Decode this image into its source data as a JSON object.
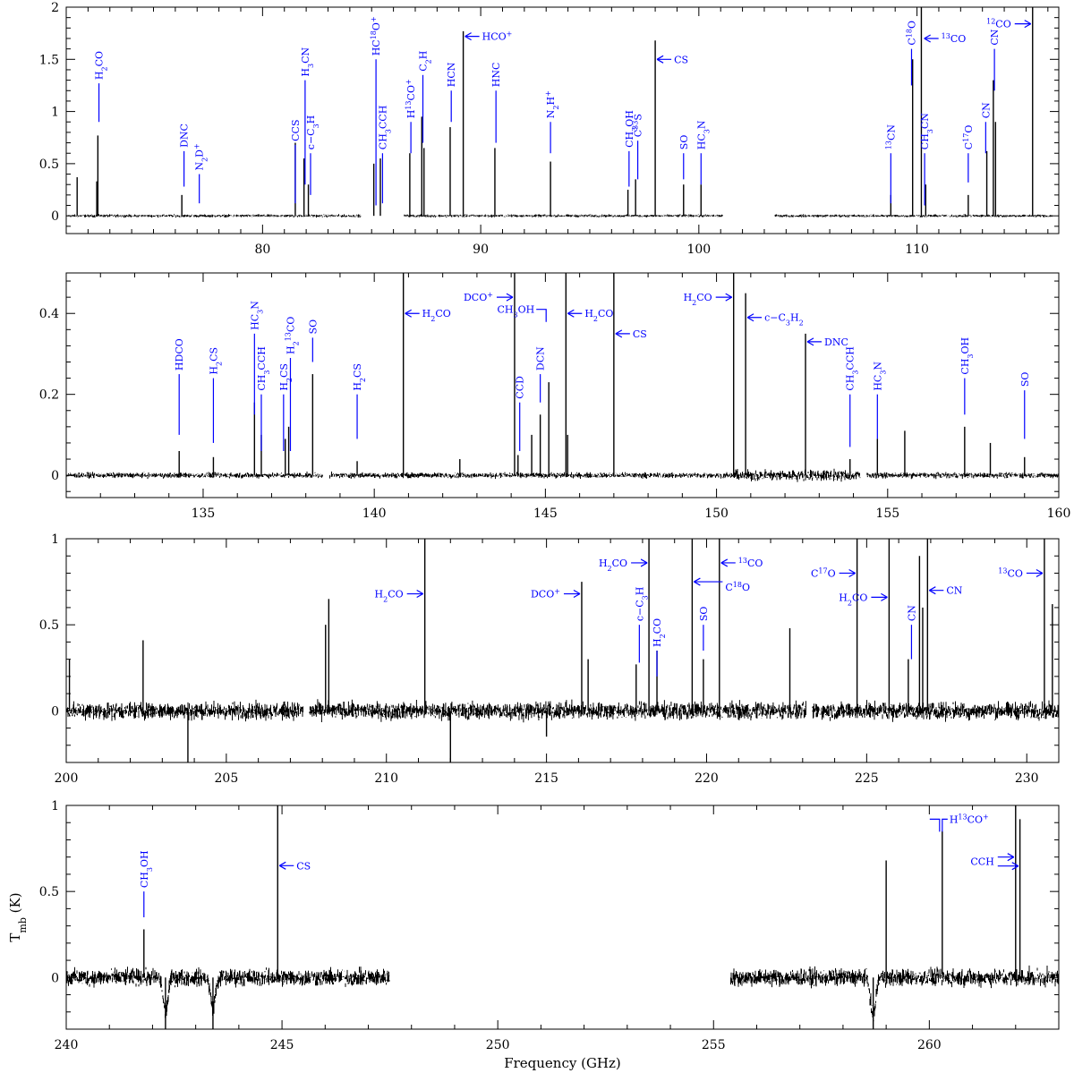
{
  "chart_data": [
    {
      "type": "line",
      "xlim": [
        71,
        116.5
      ],
      "ylim": [
        -0.17,
        2
      ],
      "xticks": [
        80,
        90,
        100,
        110
      ],
      "yticks": [
        0,
        0.5,
        1,
        1.5,
        2
      ],
      "segments": [
        [
          71,
          84.5
        ],
        [
          86.5,
          101.1
        ],
        [
          103.5,
          116.2
        ]
      ],
      "noise": [
        0.012,
        0.012,
        0.012
      ],
      "spikes": [
        [
          71.5,
          0.37
        ],
        [
          72.4,
          0.33
        ],
        [
          72.45,
          0.77
        ],
        [
          76.3,
          0.2
        ],
        [
          81.5,
          0.7
        ],
        [
          81.9,
          0.55
        ],
        [
          82.1,
          0.3
        ],
        [
          85.1,
          0.5
        ],
        [
          85.4,
          0.55
        ],
        [
          86.75,
          0.6
        ],
        [
          87.3,
          0.95
        ],
        [
          87.4,
          0.65
        ],
        [
          88.6,
          0.85
        ],
        [
          89.2,
          1.77
        ],
        [
          90.65,
          0.65
        ],
        [
          93.2,
          0.52
        ],
        [
          96.75,
          0.25
        ],
        [
          97.1,
          0.35
        ],
        [
          98,
          1.68
        ],
        [
          99.3,
          0.3
        ],
        [
          100.1,
          0.3
        ],
        [
          108.8,
          0.2
        ],
        [
          109.8,
          1.5
        ],
        [
          110.2,
          2.02
        ],
        [
          110.4,
          0.3
        ],
        [
          112.35,
          0.2
        ],
        [
          113.2,
          0.62
        ],
        [
          113.5,
          1.3
        ],
        [
          113.6,
          0.9
        ],
        [
          115.3,
          2.02
        ]
      ],
      "labels": [
        {
          "text": "H2CO",
          "x": 72.5,
          "ty": 1.35,
          "y1": 1.27,
          "y2": 0.9
        },
        {
          "text": "DNC",
          "x": 76.4,
          "ty": 0.9,
          "y1": 0.62,
          "y2": 0.28
        },
        {
          "text": "N2D+",
          "x": 77.1,
          "ty": 0.7,
          "y1": 0.4,
          "y2": 0.12
        },
        {
          "text": "CCS",
          "x": 81.5,
          "ty": 0.88,
          "y1": 0.68,
          "y2": 0.12
        },
        {
          "text": "H3CN",
          "x": 81.95,
          "ty": 1.5,
          "y1": 1.3,
          "y2": 0.3
        },
        {
          "text": "c−C3H",
          "x": 82.2,
          "ty": 0.9,
          "y1": 0.6,
          "y2": 0.2
        },
        {
          "text": "HC18O+",
          "x": 85.2,
          "ty": 1.88,
          "y1": 1.5,
          "y2": 0.1
        },
        {
          "text": "CH3CCH",
          "x": 85.5,
          "ty": 0.88,
          "y1": 0.6,
          "y2": 0.12
        },
        {
          "text": "H13CO+",
          "x": 86.8,
          "ty": 1.15,
          "y1": 0.9,
          "y2": 0.6
        },
        {
          "text": "C2H",
          "x": 87.35,
          "ty": 1.6,
          "y1": 1.35,
          "y2": 0.7
        },
        {
          "text": "HCN",
          "x": 88.65,
          "ty": 1.2,
          "y1": 1.2,
          "y2": 0.9
        },
        {
          "text": "HNC",
          "x": 90.7,
          "ty": 1.2,
          "y1": 1.2,
          "y2": 0.7
        },
        {
          "text": "N2H+",
          "x": 93.2,
          "ty": 1.15,
          "y1": 0.9,
          "y2": 0.6
        },
        {
          "text": "CH3OH",
          "x": 96.8,
          "ty": 0.9,
          "y1": 0.62,
          "y2": 0.28
        },
        {
          "text": "C33S",
          "x": 97.2,
          "ty": 1.0,
          "y1": 0.72,
          "y2": 0.35
        },
        {
          "text": "SO",
          "x": 99.3,
          "ty": 0.72,
          "y1": 0.6,
          "y2": 0.35
        },
        {
          "text": "HC3N",
          "x": 100.1,
          "ty": 0.85,
          "y1": 0.6,
          "y2": 0.3
        },
        {
          "text": "13CN",
          "x": 108.8,
          "ty": 0.82,
          "y1": 0.6,
          "y2": 0.12
        },
        {
          "text": "C18O",
          "x": 109.75,
          "ty": 1.83,
          "y1": 1.6,
          "y2": 1.25
        },
        {
          "text": "CH3CN",
          "x": 110.35,
          "ty": 0.85,
          "y1": 0.6,
          "y2": 0.1
        },
        {
          "text": "C17O",
          "x": 112.35,
          "ty": 0.82,
          "y1": 0.6,
          "y2": 0.32
        },
        {
          "text": "CN",
          "x": 113.15,
          "ty": 1.0,
          "y1": 0.9,
          "y2": 0.6
        },
        {
          "text": "CN",
          "x": 113.55,
          "ty": 1.62,
          "y1": 1.6,
          "y2": 1.2
        }
      ],
      "arrows": [
        {
          "text": "HCO+",
          "x": 89.2,
          "y": 1.72,
          "dir": "right"
        },
        {
          "text": "CS",
          "x": 98,
          "y": 1.5,
          "dir": "right"
        },
        {
          "text": "13CO",
          "x": 110.25,
          "y": 1.7,
          "dir": "right"
        },
        {
          "text": "12CO",
          "x": 115.3,
          "y": 1.84,
          "dir": "left"
        }
      ]
    },
    {
      "type": "line",
      "xlim": [
        131,
        160
      ],
      "ylim": [
        -0.055,
        0.5
      ],
      "xticks": [
        135,
        140,
        145,
        150,
        155,
        160
      ],
      "yticks": [
        0,
        0.2,
        0.4
      ],
      "segments": [
        [
          131,
          138.5
        ],
        [
          138.7,
          154.2
        ],
        [
          154.4,
          160
        ]
      ],
      "noise": [
        0.006,
        0.006,
        0.006
      ],
      "noisy_band": [
        [
          150.5,
          154.2,
          0.012
        ]
      ],
      "spikes": [
        [
          134.3,
          0.06
        ],
        [
          135.3,
          0.045
        ],
        [
          136.5,
          0.18
        ],
        [
          136.7,
          0.1
        ],
        [
          137.4,
          0.09
        ],
        [
          137.5,
          0.12
        ],
        [
          138.2,
          0.25
        ],
        [
          139.5,
          0.035
        ],
        [
          140.85,
          0.52
        ],
        [
          142.5,
          0.04
        ],
        [
          144.1,
          0.52
        ],
        [
          144.2,
          0.05
        ],
        [
          144.6,
          0.1
        ],
        [
          144.85,
          0.15
        ],
        [
          145.1,
          0.23
        ],
        [
          145.6,
          0.52
        ],
        [
          145.65,
          0.1
        ],
        [
          147,
          0.52
        ],
        [
          150.5,
          0.52
        ],
        [
          150.85,
          0.45
        ],
        [
          152.6,
          0.35
        ],
        [
          153.9,
          0.04
        ],
        [
          154.7,
          0.09
        ],
        [
          155.5,
          0.11
        ],
        [
          157.25,
          0.12
        ],
        [
          158,
          0.08
        ],
        [
          159,
          0.045
        ]
      ],
      "labels": [
        {
          "text": "HDCO",
          "x": 134.3,
          "ty": 0.33,
          "y1": 0.25,
          "y2": 0.1
        },
        {
          "text": "H2CS",
          "x": 135.3,
          "ty": 0.28,
          "y1": 0.24,
          "y2": 0.08
        },
        {
          "text": "HC3N",
          "x": 136.5,
          "ty": 0.4,
          "y1": 0.35,
          "y2": 0.15
        },
        {
          "text": "CH3CCH",
          "x": 136.7,
          "ty": 0.32,
          "y1": 0.2,
          "y2": 0.06
        },
        {
          "text": "H2CS",
          "x": 137.35,
          "ty": 0.2,
          "y1": 0.2,
          "y2": 0.06
        },
        {
          "text": "H213CO",
          "x": 137.55,
          "ty": 0.33,
          "y1": 0.29,
          "y2": 0.06
        },
        {
          "text": "SO",
          "x": 138.2,
          "ty": 0.37,
          "y1": 0.34,
          "y2": 0.28
        },
        {
          "text": "H2CS",
          "x": 139.5,
          "ty": 0.26,
          "y1": 0.2,
          "y2": 0.09
        },
        {
          "text": "CCD",
          "x": 144.25,
          "ty": 0.19,
          "y1": 0.18,
          "y2": 0.06
        },
        {
          "text": "DCN",
          "x": 144.85,
          "ty": 0.27,
          "y1": 0.25,
          "y2": 0.18
        },
        {
          "text": "HC3N",
          "x": 154.7,
          "ty": 0.25,
          "y1": 0.2,
          "y2": 0.09
        },
        {
          "text": "CH3CCH",
          "x": 153.9,
          "ty": 0.2,
          "y1": 0.2,
          "y2": 0.07
        },
        {
          "text": "CH3OH",
          "x": 157.25,
          "ty": 0.27,
          "y1": 0.24,
          "y2": 0.15
        },
        {
          "text": "SO",
          "x": 159,
          "ty": 0.25,
          "y1": 0.21,
          "y2": 0.09
        }
      ],
      "arrows": [
        {
          "text": "H2CO",
          "x": 140.85,
          "y": 0.4,
          "dir": "right"
        },
        {
          "text": "DCO+",
          "x": 144.1,
          "y": 0.44,
          "dir": "left"
        },
        {
          "text": "CH3OH",
          "x": 145.1,
          "y": 0.41,
          "dir": "bracket"
        },
        {
          "text": "H2CO",
          "x": 145.6,
          "y": 0.4,
          "dir": "right"
        },
        {
          "text": "CS",
          "x": 147,
          "y": 0.35,
          "dir": "right"
        },
        {
          "text": "H2CO",
          "x": 150.5,
          "y": 0.44,
          "dir": "left"
        },
        {
          "text": "c−C3H2",
          "x": 150.85,
          "y": 0.39,
          "dir": "right"
        },
        {
          "text": "DNC",
          "x": 152.6,
          "y": 0.33,
          "dir": "right"
        }
      ]
    },
    {
      "type": "line",
      "xlim": [
        200,
        231
      ],
      "ylim": [
        -0.3,
        1
      ],
      "xticks": [
        200,
        205,
        210,
        215,
        220,
        225,
        230
      ],
      "yticks": [
        0,
        0.5,
        1
      ],
      "segments": [
        [
          200,
          207.4
        ],
        [
          207.6,
          223.1
        ],
        [
          223.3,
          231
        ]
      ],
      "noise": [
        0.045,
        0.045,
        0.045
      ],
      "spikes": [
        [
          200.1,
          0.3
        ],
        [
          202.4,
          0.41
        ],
        [
          203.8,
          -0.3
        ],
        [
          208.1,
          0.5
        ],
        [
          208.2,
          0.65
        ],
        [
          211.2,
          1.05
        ],
        [
          212,
          -0.35
        ],
        [
          215,
          -0.15
        ],
        [
          216.1,
          0.75
        ],
        [
          216.3,
          0.3
        ],
        [
          217.8,
          0.27
        ],
        [
          218.2,
          1.05
        ],
        [
          218.45,
          0.35
        ],
        [
          219.55,
          1.05
        ],
        [
          219.9,
          0.3
        ],
        [
          220.4,
          1.05
        ],
        [
          222.6,
          0.48
        ],
        [
          224.7,
          1.05
        ],
        [
          225.7,
          1.05
        ],
        [
          226.3,
          0.3
        ],
        [
          226.65,
          0.9
        ],
        [
          226.75,
          0.6
        ],
        [
          226.9,
          1.05
        ],
        [
          230.55,
          1.05
        ],
        [
          230.8,
          0.62
        ]
      ],
      "labels": [
        {
          "text": "c−C3H",
          "x": 217.9,
          "ty": 0.7,
          "y1": 0.5,
          "y2": 0.28
        },
        {
          "text": "H2CO",
          "x": 218.45,
          "ty": 0.58,
          "y1": 0.35,
          "y2": 0.2
        },
        {
          "text": "SO",
          "x": 219.9,
          "ty": 0.5,
          "y1": 0.5,
          "y2": 0.35
        },
        {
          "text": "CN",
          "x": 226.4,
          "ty": 0.5,
          "y1": 0.5,
          "y2": 0.3
        }
      ],
      "arrows": [
        {
          "text": "H2CO",
          "x": 211.2,
          "y": 0.68,
          "dir": "left"
        },
        {
          "text": "DCO+",
          "x": 216.1,
          "y": 0.68,
          "dir": "left"
        },
        {
          "text": "H2CO",
          "x": 218.2,
          "y": 0.86,
          "dir": "left"
        },
        {
          "text": "C18O",
          "x": 219.55,
          "y": 0.75,
          "dir": "right-long"
        },
        {
          "text": "13CO",
          "x": 220.4,
          "y": 0.86,
          "dir": "right"
        },
        {
          "text": "C17O",
          "x": 224.7,
          "y": 0.8,
          "dir": "left"
        },
        {
          "text": "H2CO",
          "x": 225.7,
          "y": 0.66,
          "dir": "left"
        },
        {
          "text": "CN",
          "x": 226.9,
          "y": 0.7,
          "dir": "right"
        },
        {
          "text": "13CO",
          "x": 230.55,
          "y": 0.8,
          "dir": "left"
        }
      ]
    },
    {
      "type": "line",
      "xlim": [
        240,
        263
      ],
      "ylim": [
        -0.3,
        1
      ],
      "xticks": [
        240,
        245,
        250,
        255,
        260
      ],
      "yticks": [
        0,
        0.5,
        1
      ],
      "segments": [
        [
          240,
          247.5
        ],
        [
          255.4,
          263
        ]
      ],
      "noise": [
        0.045,
        0.045
      ],
      "dips": [
        [
          242.3,
          -0.2
        ],
        [
          243.4,
          -0.17
        ],
        [
          258.7,
          -0.23
        ]
      ],
      "spikes": [
        [
          241.8,
          0.28
        ],
        [
          242.3,
          -0.3
        ],
        [
          243.4,
          -0.3
        ],
        [
          244.9,
          1.05
        ],
        [
          258.7,
          -0.3
        ],
        [
          259,
          0.68
        ],
        [
          260.3,
          0.85
        ],
        [
          262,
          1.05
        ],
        [
          262.1,
          0.92
        ]
      ],
      "labels": [
        {
          "text": "CH3OH",
          "x": 241.8,
          "ty": 0.75,
          "y1": 0.5,
          "y2": 0.35
        }
      ],
      "arrows": [
        {
          "text": "CS",
          "x": 244.9,
          "y": 0.65,
          "dir": "right"
        },
        {
          "text": "H13CO+",
          "x": 260.3,
          "y": 0.92,
          "dir": "bracket"
        },
        {
          "text": "CCH",
          "x": 262,
          "y": 0.7,
          "dir": "left-double"
        }
      ],
      "xlabel": "Frequency (GHz)",
      "ylabel": "Tmb (K)"
    }
  ],
  "colors": {
    "spectrum": "#000000",
    "annotation": "#0000ff"
  }
}
